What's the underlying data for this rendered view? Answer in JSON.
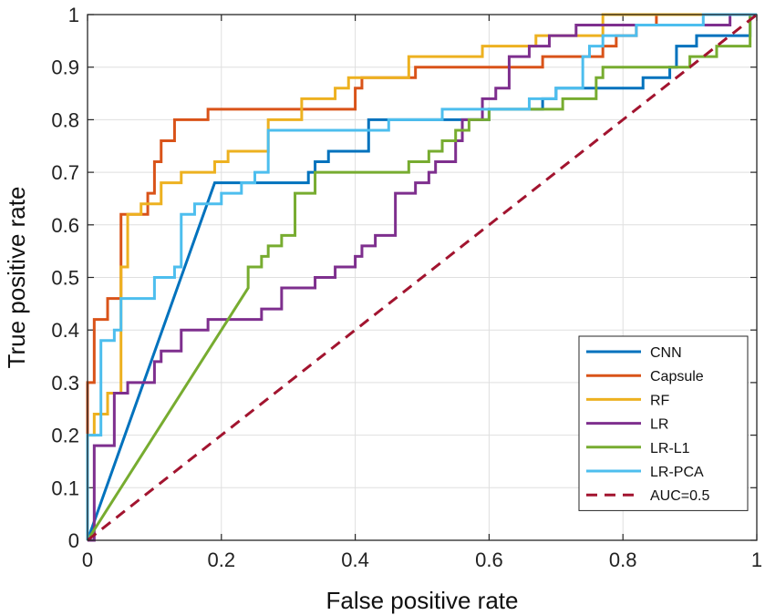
{
  "chart_data": {
    "type": "line",
    "title": "",
    "xlabel": "False positive rate",
    "ylabel": "True positive rate",
    "xlim": [
      0,
      1
    ],
    "ylim": [
      0,
      1
    ],
    "grid": true,
    "legend_position": "bottom-right",
    "x_ticks": [
      "0",
      "0.2",
      "0.4",
      "0.6",
      "0.8",
      "1"
    ],
    "y_ticks": [
      "0",
      "0.1",
      "0.2",
      "0.3",
      "0.4",
      "0.5",
      "0.6",
      "0.7",
      "0.8",
      "0.9",
      "1"
    ],
    "series": [
      {
        "name": "CNN",
        "color": "#0072BD",
        "style": "solid",
        "points": [
          [
            0,
            0
          ],
          [
            0.19,
            0.68
          ],
          [
            0.33,
            0.68
          ],
          [
            0.33,
            0.7
          ],
          [
            0.34,
            0.7
          ],
          [
            0.34,
            0.72
          ],
          [
            0.36,
            0.72
          ],
          [
            0.36,
            0.74
          ],
          [
            0.42,
            0.74
          ],
          [
            0.42,
            0.78
          ],
          [
            0.42,
            0.8
          ],
          [
            0.53,
            0.8
          ],
          [
            0.6,
            0.8
          ],
          [
            0.6,
            0.82
          ],
          [
            0.68,
            0.82
          ],
          [
            0.68,
            0.84
          ],
          [
            0.7,
            0.84
          ],
          [
            0.7,
            0.86
          ],
          [
            0.77,
            0.86
          ],
          [
            0.77,
            0.86
          ],
          [
            0.83,
            0.86
          ],
          [
            0.83,
            0.88
          ],
          [
            0.87,
            0.88
          ],
          [
            0.87,
            0.9
          ],
          [
            0.88,
            0.9
          ],
          [
            0.88,
            0.94
          ],
          [
            0.91,
            0.94
          ],
          [
            0.91,
            0.96
          ],
          [
            0.99,
            0.96
          ],
          [
            0.99,
            1
          ],
          [
            1,
            1
          ]
        ]
      },
      {
        "name": "Capsule",
        "color": "#D95319",
        "style": "solid",
        "points": [
          [
            0,
            0
          ],
          [
            0,
            0.3
          ],
          [
            0.01,
            0.3
          ],
          [
            0.01,
            0.42
          ],
          [
            0.03,
            0.42
          ],
          [
            0.03,
            0.46
          ],
          [
            0.05,
            0.46
          ],
          [
            0.05,
            0.62
          ],
          [
            0.09,
            0.62
          ],
          [
            0.09,
            0.66
          ],
          [
            0.1,
            0.66
          ],
          [
            0.1,
            0.72
          ],
          [
            0.11,
            0.72
          ],
          [
            0.11,
            0.76
          ],
          [
            0.13,
            0.76
          ],
          [
            0.13,
            0.8
          ],
          [
            0.18,
            0.8
          ],
          [
            0.18,
            0.82
          ],
          [
            0.4,
            0.82
          ],
          [
            0.4,
            0.86
          ],
          [
            0.41,
            0.86
          ],
          [
            0.41,
            0.88
          ],
          [
            0.49,
            0.88
          ],
          [
            0.49,
            0.9
          ],
          [
            0.68,
            0.9
          ],
          [
            0.68,
            0.92
          ],
          [
            0.77,
            0.92
          ],
          [
            0.77,
            0.94
          ],
          [
            0.79,
            0.94
          ],
          [
            0.79,
            0.96
          ],
          [
            0.82,
            0.96
          ],
          [
            0.82,
            0.98
          ],
          [
            0.85,
            0.98
          ],
          [
            0.85,
            1
          ],
          [
            1,
            1
          ]
        ]
      },
      {
        "name": "RF",
        "color": "#EDB120",
        "style": "solid",
        "points": [
          [
            0,
            0
          ],
          [
            0,
            0.2
          ],
          [
            0.01,
            0.2
          ],
          [
            0.01,
            0.24
          ],
          [
            0.03,
            0.24
          ],
          [
            0.03,
            0.28
          ],
          [
            0.05,
            0.28
          ],
          [
            0.05,
            0.52
          ],
          [
            0.06,
            0.52
          ],
          [
            0.06,
            0.62
          ],
          [
            0.08,
            0.62
          ],
          [
            0.08,
            0.64
          ],
          [
            0.11,
            0.64
          ],
          [
            0.11,
            0.68
          ],
          [
            0.14,
            0.68
          ],
          [
            0.14,
            0.7
          ],
          [
            0.19,
            0.7
          ],
          [
            0.19,
            0.72
          ],
          [
            0.21,
            0.72
          ],
          [
            0.21,
            0.74
          ],
          [
            0.27,
            0.74
          ],
          [
            0.27,
            0.8
          ],
          [
            0.32,
            0.8
          ],
          [
            0.32,
            0.84
          ],
          [
            0.37,
            0.84
          ],
          [
            0.37,
            0.86
          ],
          [
            0.39,
            0.86
          ],
          [
            0.39,
            0.88
          ],
          [
            0.48,
            0.88
          ],
          [
            0.48,
            0.92
          ],
          [
            0.59,
            0.92
          ],
          [
            0.59,
            0.94
          ],
          [
            0.67,
            0.94
          ],
          [
            0.67,
            0.96
          ],
          [
            0.77,
            0.96
          ],
          [
            0.77,
            1
          ],
          [
            1,
            1
          ]
        ]
      },
      {
        "name": "LR",
        "color": "#7E2F8E",
        "style": "solid",
        "points": [
          [
            0,
            0
          ],
          [
            0.01,
            0
          ],
          [
            0.01,
            0.18
          ],
          [
            0.04,
            0.18
          ],
          [
            0.04,
            0.28
          ],
          [
            0.06,
            0.28
          ],
          [
            0.06,
            0.3
          ],
          [
            0.1,
            0.3
          ],
          [
            0.1,
            0.34
          ],
          [
            0.11,
            0.34
          ],
          [
            0.11,
            0.36
          ],
          [
            0.14,
            0.36
          ],
          [
            0.14,
            0.4
          ],
          [
            0.18,
            0.4
          ],
          [
            0.18,
            0.42
          ],
          [
            0.26,
            0.42
          ],
          [
            0.26,
            0.44
          ],
          [
            0.29,
            0.44
          ],
          [
            0.29,
            0.48
          ],
          [
            0.34,
            0.48
          ],
          [
            0.34,
            0.5
          ],
          [
            0.37,
            0.5
          ],
          [
            0.37,
            0.52
          ],
          [
            0.4,
            0.52
          ],
          [
            0.4,
            0.54
          ],
          [
            0.41,
            0.54
          ],
          [
            0.41,
            0.56
          ],
          [
            0.43,
            0.56
          ],
          [
            0.43,
            0.58
          ],
          [
            0.46,
            0.58
          ],
          [
            0.46,
            0.66
          ],
          [
            0.49,
            0.66
          ],
          [
            0.49,
            0.68
          ],
          [
            0.51,
            0.68
          ],
          [
            0.51,
            0.7
          ],
          [
            0.52,
            0.7
          ],
          [
            0.52,
            0.72
          ],
          [
            0.55,
            0.72
          ],
          [
            0.55,
            0.76
          ],
          [
            0.56,
            0.76
          ],
          [
            0.56,
            0.8
          ],
          [
            0.59,
            0.8
          ],
          [
            0.59,
            0.84
          ],
          [
            0.61,
            0.84
          ],
          [
            0.61,
            0.86
          ],
          [
            0.63,
            0.86
          ],
          [
            0.63,
            0.92
          ],
          [
            0.66,
            0.92
          ],
          [
            0.66,
            0.94
          ],
          [
            0.69,
            0.94
          ],
          [
            0.69,
            0.96
          ],
          [
            0.73,
            0.96
          ],
          [
            0.73,
            0.98
          ],
          [
            0.96,
            0.98
          ],
          [
            0.96,
            1
          ],
          [
            1,
            1
          ]
        ]
      },
      {
        "name": "LR-L1",
        "color": "#77AC30",
        "style": "solid",
        "points": [
          [
            0,
            0
          ],
          [
            0.24,
            0.48
          ],
          [
            0.24,
            0.52
          ],
          [
            0.26,
            0.52
          ],
          [
            0.26,
            0.54
          ],
          [
            0.27,
            0.54
          ],
          [
            0.27,
            0.56
          ],
          [
            0.29,
            0.56
          ],
          [
            0.29,
            0.58
          ],
          [
            0.31,
            0.58
          ],
          [
            0.31,
            0.66
          ],
          [
            0.34,
            0.66
          ],
          [
            0.34,
            0.7
          ],
          [
            0.48,
            0.7
          ],
          [
            0.48,
            0.72
          ],
          [
            0.51,
            0.72
          ],
          [
            0.51,
            0.74
          ],
          [
            0.53,
            0.74
          ],
          [
            0.53,
            0.76
          ],
          [
            0.55,
            0.76
          ],
          [
            0.55,
            0.78
          ],
          [
            0.57,
            0.78
          ],
          [
            0.57,
            0.8
          ],
          [
            0.6,
            0.8
          ],
          [
            0.6,
            0.82
          ],
          [
            0.71,
            0.82
          ],
          [
            0.71,
            0.84
          ],
          [
            0.76,
            0.84
          ],
          [
            0.76,
            0.88
          ],
          [
            0.77,
            0.88
          ],
          [
            0.77,
            0.9
          ],
          [
            0.84,
            0.9
          ],
          [
            0.84,
            0.9
          ],
          [
            0.9,
            0.9
          ],
          [
            0.9,
            0.92
          ],
          [
            0.94,
            0.92
          ],
          [
            0.94,
            0.94
          ],
          [
            0.99,
            0.94
          ],
          [
            0.99,
            1
          ],
          [
            1,
            1
          ]
        ]
      },
      {
        "name": "LR-PCA",
        "color": "#4DBEEE",
        "style": "solid",
        "points": [
          [
            0,
            0
          ],
          [
            0,
            0.2
          ],
          [
            0.02,
            0.2
          ],
          [
            0.02,
            0.38
          ],
          [
            0.04,
            0.38
          ],
          [
            0.04,
            0.4
          ],
          [
            0.05,
            0.4
          ],
          [
            0.05,
            0.46
          ],
          [
            0.1,
            0.46
          ],
          [
            0.1,
            0.5
          ],
          [
            0.13,
            0.5
          ],
          [
            0.13,
            0.52
          ],
          [
            0.14,
            0.52
          ],
          [
            0.14,
            0.62
          ],
          [
            0.16,
            0.62
          ],
          [
            0.16,
            0.64
          ],
          [
            0.2,
            0.64
          ],
          [
            0.2,
            0.66
          ],
          [
            0.23,
            0.66
          ],
          [
            0.23,
            0.68
          ],
          [
            0.25,
            0.68
          ],
          [
            0.25,
            0.7
          ],
          [
            0.27,
            0.7
          ],
          [
            0.27,
            0.78
          ],
          [
            0.45,
            0.78
          ],
          [
            0.45,
            0.8
          ],
          [
            0.53,
            0.8
          ],
          [
            0.53,
            0.82
          ],
          [
            0.56,
            0.82
          ],
          [
            0.56,
            0.82
          ],
          [
            0.66,
            0.82
          ],
          [
            0.66,
            0.84
          ],
          [
            0.7,
            0.84
          ],
          [
            0.7,
            0.86
          ],
          [
            0.74,
            0.86
          ],
          [
            0.74,
            0.92
          ],
          [
            0.75,
            0.92
          ],
          [
            0.75,
            0.94
          ],
          [
            0.77,
            0.94
          ],
          [
            0.77,
            0.96
          ],
          [
            0.82,
            0.96
          ],
          [
            0.82,
            0.98
          ],
          [
            0.92,
            0.98
          ],
          [
            0.92,
            1
          ],
          [
            1,
            1
          ]
        ]
      },
      {
        "name": "AUC=0.5",
        "color": "#A2142F",
        "style": "dashed",
        "points": [
          [
            0,
            0
          ],
          [
            1,
            1
          ]
        ]
      }
    ]
  }
}
